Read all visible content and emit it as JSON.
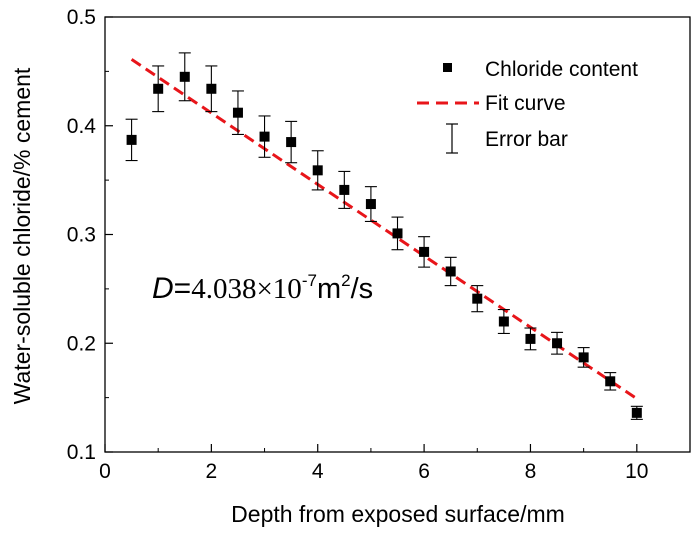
{
  "chart_data": {
    "type": "scatter",
    "title": "",
    "xlabel": "Depth from exposed surface/mm",
    "ylabel": "Water-soluble chloride/% cement",
    "xlim": [
      0,
      11
    ],
    "ylim": [
      0.1,
      0.5
    ],
    "x_ticks": [
      "0",
      "2",
      "4",
      "6",
      "8",
      "10"
    ],
    "y_ticks": [
      "0.1",
      "0.2",
      "0.3",
      "0.4",
      "0.5"
    ],
    "grid": false,
    "legend_position": "top-right",
    "legend": [
      "Chloride content",
      "Fit curve",
      "Error bar"
    ],
    "series": [
      {
        "name": "Chloride content",
        "marker": "square",
        "color": "#000000",
        "x": [
          0.5,
          1.0,
          1.5,
          2.0,
          2.5,
          3.0,
          3.5,
          4.0,
          4.5,
          5.0,
          5.5,
          6.0,
          6.5,
          7.0,
          7.5,
          8.0,
          8.5,
          9.0,
          9.5,
          10.0
        ],
        "y": [
          0.387,
          0.434,
          0.445,
          0.434,
          0.412,
          0.39,
          0.385,
          0.359,
          0.341,
          0.328,
          0.301,
          0.284,
          0.266,
          0.241,
          0.22,
          0.204,
          0.2,
          0.187,
          0.165,
          0.136
        ],
        "error": [
          0.019,
          0.021,
          0.022,
          0.021,
          0.02,
          0.019,
          0.019,
          0.018,
          0.017,
          0.016,
          0.015,
          0.014,
          0.013,
          0.012,
          0.011,
          0.01,
          0.01,
          0.009,
          0.008,
          0.006
        ]
      },
      {
        "name": "Fit curve",
        "style": "dashed",
        "color": "#e8151a",
        "x": [
          0.5,
          10.0
        ],
        "y": [
          0.461,
          0.149
        ]
      }
    ],
    "annotation": {
      "symbol": "D",
      "equals": "=",
      "value": "4.038×10",
      "exponent": "-7",
      "unit": "m",
      "unit_exponent": "2",
      "unit_suffix": "/s"
    }
  }
}
